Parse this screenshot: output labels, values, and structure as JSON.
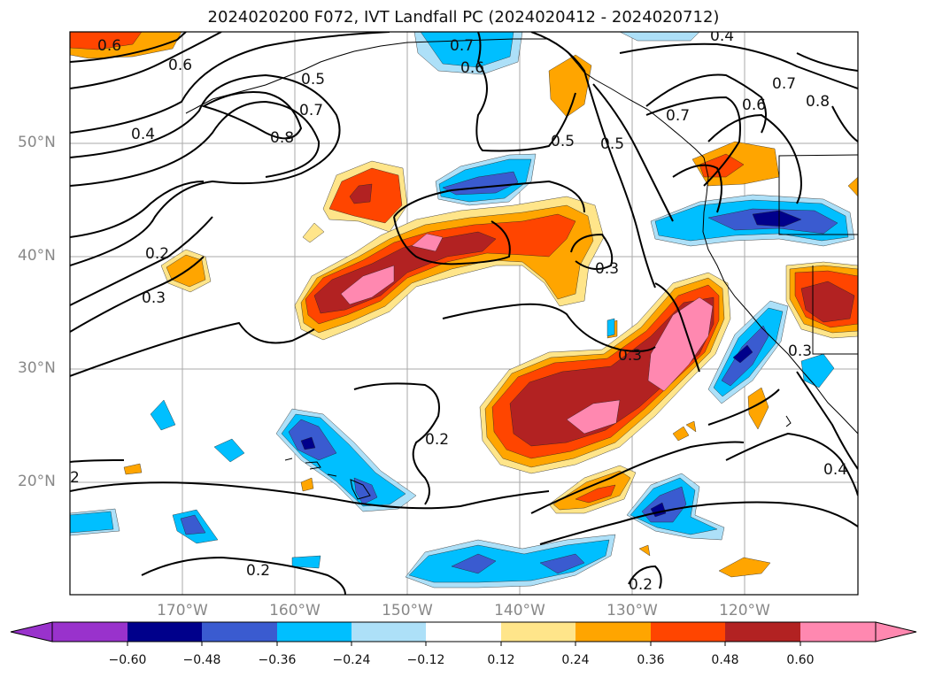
{
  "title": "2024020200 F072, IVT Landfall PC (2024020412 - 2024020712)",
  "lat_labels": [
    "50°N",
    "40°N",
    "30°N",
    "20°N"
  ],
  "lon_labels": [
    "170°W",
    "160°W",
    "150°W",
    "140°W",
    "130°W",
    "120°W"
  ],
  "contour_labels": [
    "0.6",
    "0.6",
    "0.5",
    "0.7",
    "0.8",
    "0.4",
    "0.7",
    "0.6",
    "0.4",
    "0.5",
    "0.5",
    "0.7",
    "0.6",
    "0.7",
    "0.8",
    "0.2",
    "0.3",
    "0.3",
    "0.3",
    "0.3",
    "0.2",
    "2",
    "0.2",
    "0.2",
    "0.4"
  ],
  "colorbar": {
    "ticks": [
      "−0.60",
      "−0.48",
      "−0.36",
      "−0.24",
      "−0.12",
      "0.12",
      "0.24",
      "0.36",
      "0.48",
      "0.60"
    ],
    "colors": [
      "#9932cc",
      "#00008b",
      "#3a5bd0",
      "#00bfff",
      "#ade0f8",
      "#ffffff",
      "#ffe58a",
      "#ffa500",
      "#ff4500",
      "#b22222",
      "#ff88b0",
      "#ff88b0"
    ]
  },
  "colors": {
    "pink": "#ff88b0",
    "darkred": "#b22222",
    "red": "#ff4500",
    "orange": "#ffa500",
    "yellow": "#ffe58a",
    "lightblue": "#ade0f8",
    "cyan": "#00bfff",
    "blue": "#3a5bd0",
    "navy": "#00008b"
  }
}
